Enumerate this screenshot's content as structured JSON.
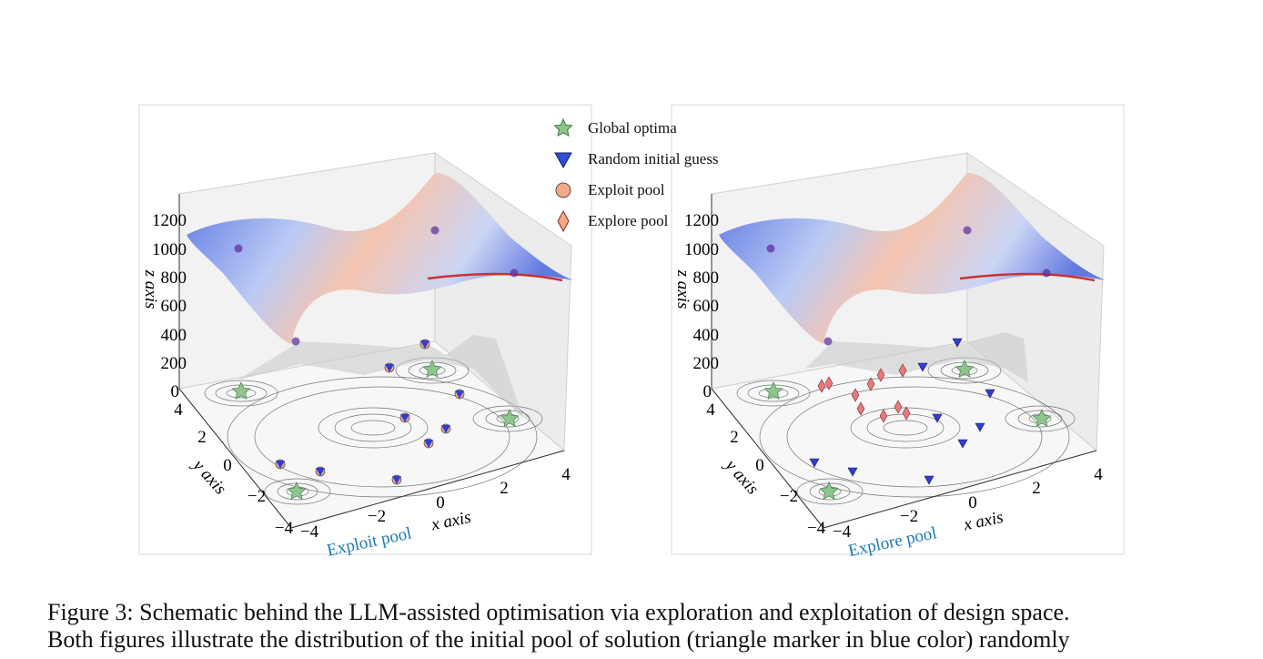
{
  "legend": {
    "items": [
      {
        "label": "Global optima",
        "marker": "star",
        "color": "#8fc48f"
      },
      {
        "label": "Random initial guess",
        "marker": "triangle-down",
        "color": "#2f4fd6"
      },
      {
        "label": "Exploit pool",
        "marker": "circle",
        "color": "#f4a884"
      },
      {
        "label": "Explore pool",
        "marker": "diamond",
        "color": "#f4a884"
      }
    ]
  },
  "plots": [
    {
      "zaxis_label": "z axis",
      "yaxis_label": "y axis",
      "xaxis_label": "x axis",
      "pool_label": "Exploit pool",
      "z_ticks": [
        "1200",
        "1000",
        "800",
        "600",
        "400",
        "200",
        "0"
      ],
      "y_ticks": [
        "4",
        "2",
        "0",
        "−2",
        "−4"
      ],
      "x_ticks": [
        "−4",
        "−2",
        "0",
        "2",
        "4"
      ]
    },
    {
      "zaxis_label": "z axis",
      "yaxis_label": "y axis",
      "xaxis_label": "x axis",
      "pool_label": "Explore pool",
      "z_ticks": [
        "1200",
        "1000",
        "800",
        "600",
        "400",
        "200",
        "0"
      ],
      "y_ticks": [
        "4",
        "2",
        "0",
        "−2",
        "−4"
      ],
      "x_ticks": [
        "−4",
        "−2",
        "0",
        "2",
        "4"
      ]
    }
  ],
  "colors": {
    "pool_label": "#1a78b5",
    "surface_low": "#4a63d8",
    "surface_high": "#f2a98f",
    "grid": "#cfcfcf"
  },
  "caption": {
    "line1": "Figure 3: Schematic behind the LLM-assisted optimisation via exploration and exploitation of design space.",
    "line2": "Both figures illustrate the distribution of the initial pool of solution (triangle marker in blue color) randomly"
  }
}
